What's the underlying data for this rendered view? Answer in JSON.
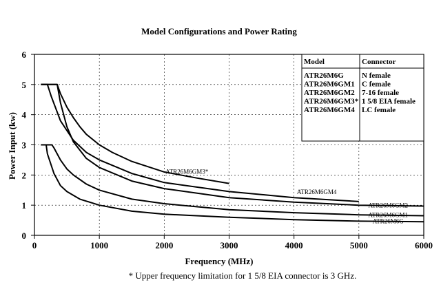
{
  "chart_data": {
    "type": "line",
    "title": "Model Configurations and Power Rating",
    "xlabel": "Frequency (MHz)",
    "ylabel": "Power Input (kw)",
    "xlim": [
      0,
      6000
    ],
    "ylim": [
      0,
      6
    ],
    "xticks": [
      0,
      1000,
      2000,
      3000,
      4000,
      5000,
      6000
    ],
    "xtick_labels": [
      "0",
      "1000",
      "2000",
      "3000",
      "4000",
      "5000",
      "6000"
    ],
    "yticks": [
      0,
      1,
      2,
      3,
      4,
      5,
      6
    ],
    "ytick_labels": [
      "0",
      "1",
      "2",
      "3",
      "4",
      "5",
      "6"
    ],
    "grid": true,
    "series": [
      {
        "name": "ATR26M6GM3*",
        "label": "ATR26M6GM3*",
        "x": [
          100,
          350,
          400,
          500,
          600,
          700,
          800,
          1000,
          1200,
          1500,
          2000,
          2500,
          3000
        ],
        "y": [
          5.0,
          5.0,
          4.7,
          4.25,
          3.9,
          3.6,
          3.35,
          3.0,
          2.75,
          2.45,
          2.1,
          1.9,
          1.72
        ]
      },
      {
        "name": "ATR26M6GM4",
        "label": "ATR26M6GM4",
        "x": [
          100,
          200,
          260,
          400,
          600,
          800,
          1000,
          1500,
          2000,
          3000,
          4000,
          5000
        ],
        "y": [
          5.0,
          5.0,
          4.6,
          3.8,
          3.15,
          2.75,
          2.5,
          2.05,
          1.75,
          1.45,
          1.25,
          1.12
        ]
      },
      {
        "name": "ATR26M6GM2",
        "label": "ATR26M6GM2",
        "x": [
          100,
          350,
          400,
          500,
          600,
          800,
          1000,
          1500,
          2000,
          3000,
          4000,
          5000,
          6000
        ],
        "y": [
          5.0,
          5.0,
          4.4,
          3.6,
          3.1,
          2.55,
          2.25,
          1.8,
          1.55,
          1.25,
          1.1,
          1.0,
          0.97
        ]
      },
      {
        "name": "ATR26M6GM1",
        "label": "ATR26M6GM1",
        "x": [
          100,
          270,
          300,
          400,
          500,
          600,
          800,
          1000,
          1500,
          2000,
          3000,
          4000,
          5000,
          6000
        ],
        "y": [
          3.0,
          3.0,
          2.9,
          2.5,
          2.2,
          2.0,
          1.7,
          1.5,
          1.2,
          1.05,
          0.85,
          0.75,
          0.68,
          0.65
        ]
      },
      {
        "name": "ATR26M6G",
        "label": "ATR26M6G",
        "x": [
          100,
          180,
          200,
          300,
          400,
          500,
          700,
          1000,
          1500,
          2000,
          3000,
          4000,
          5000,
          6000
        ],
        "y": [
          3.0,
          3.0,
          2.7,
          2.05,
          1.65,
          1.45,
          1.2,
          1.0,
          0.8,
          0.7,
          0.6,
          0.52,
          0.47,
          0.45
        ]
      }
    ],
    "legend": {
      "placement": "top-right",
      "headers": [
        "Model",
        "Connector"
      ],
      "rows": [
        [
          "ATR26M6G",
          "N female"
        ],
        [
          "ATR26M6GM1",
          "C female"
        ],
        [
          "ATR26M6GM2",
          "7-16 female"
        ],
        [
          "ATR26M6GM3*",
          "1 5/8 EIA female"
        ],
        [
          "ATR26M6GM4",
          "LC female"
        ]
      ]
    }
  },
  "footnote": "* Upper frequency limitation for 1 5/8 EIA connector is 3 GHz."
}
